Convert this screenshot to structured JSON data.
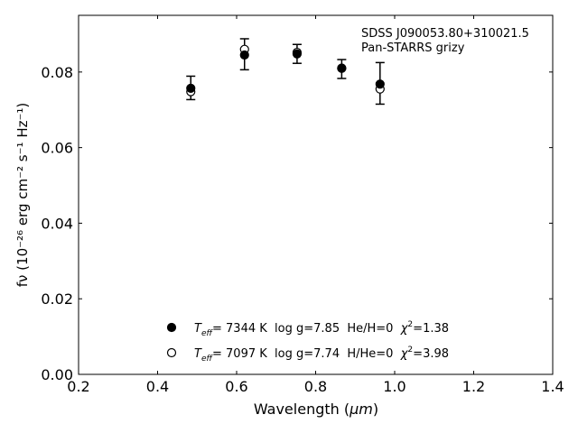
{
  "chart_data": {
    "type": "scatter",
    "xlabel_prefix": "Wavelength (",
    "xlabel_unit": "μm",
    "xlabel_suffix": ")",
    "ylabel": "fν (10⁻²⁶ erg cm⁻² s⁻¹ Hz⁻¹)",
    "xlim": [
      0.2,
      1.4
    ],
    "ylim": [
      0.0,
      0.095
    ],
    "x_ticks": [
      "0.2",
      "0.4",
      "0.6",
      "0.8",
      "1.0",
      "1.2",
      "1.4"
    ],
    "y_ticks": [
      "0.00",
      "0.02",
      "0.04",
      "0.06",
      "0.08"
    ],
    "grid": false,
    "annotation": [
      "SDSS J090053.80+310021.5",
      "Pan-STARRS grizy"
    ],
    "observed": {
      "x": [
        0.484,
        0.62,
        0.753,
        0.866,
        0.963
      ],
      "y": [
        0.0758,
        0.0847,
        0.0848,
        0.0808,
        0.077
      ],
      "yerr": [
        0.0031,
        0.0041,
        0.0025,
        0.0025,
        0.0055
      ]
    },
    "series": [
      {
        "name": "Teff=  7344 K  log g=7.85  He/H=0  χ2=1.38",
        "marker": "filled-circle",
        "x": [
          0.484,
          0.62,
          0.753,
          0.866,
          0.963
        ],
        "y": [
          0.0757,
          0.0845,
          0.0848,
          0.081,
          0.0768
        ]
      },
      {
        "name": "Teff=  7097 K  log g=7.74  H/He=0  χ2=3.98",
        "marker": "open-circle",
        "x": [
          0.484,
          0.62,
          0.753,
          0.866,
          0.963
        ],
        "y": [
          0.0748,
          0.086,
          0.0852,
          0.081,
          0.0755
        ]
      }
    ],
    "legend": [
      {
        "marker": "filled-circle",
        "teff": "7344",
        "rest": " K  log g=7.85  He/H=0  ",
        "chi": "1.38"
      },
      {
        "marker": "open-circle",
        "teff": "7097",
        "rest": " K  log g=7.74  H/He=0  ",
        "chi": "3.98"
      }
    ],
    "legend_placement": "lower-center"
  }
}
